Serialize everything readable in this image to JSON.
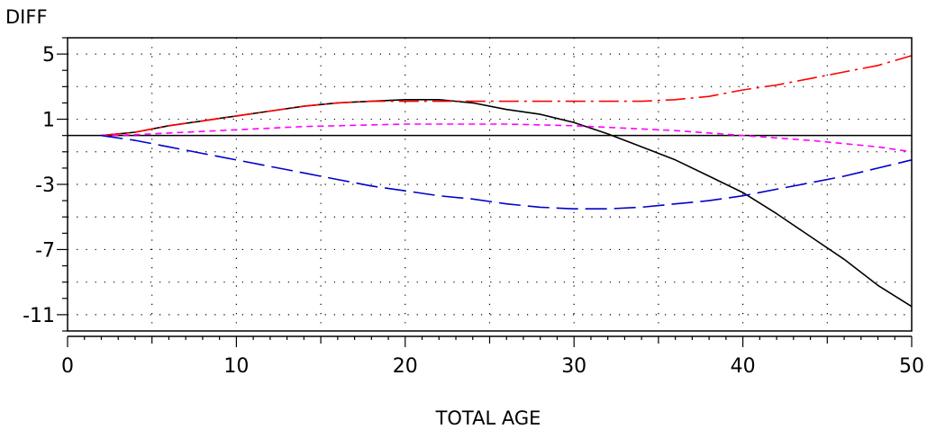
{
  "chart_data": {
    "type": "line",
    "title": "",
    "ylabel": "DIFF",
    "xlabel": "TOTAL AGE",
    "xlim": [
      0,
      50
    ],
    "ylim": [
      -12,
      6
    ],
    "x_ticks": [
      0,
      10,
      20,
      30,
      40,
      50
    ],
    "x_tick_labels": [
      "0",
      "10",
      "20",
      "30",
      "40",
      "50"
    ],
    "y_ticks": [
      5,
      1,
      -3,
      -7,
      -11
    ],
    "y_tick_labels": [
      "5",
      "1",
      "-3",
      "-7",
      "-11"
    ],
    "grid": true,
    "reference_line_y": 0,
    "series": [
      {
        "color": "#000000",
        "style": "solid",
        "x": [
          2,
          4,
          6,
          8,
          10,
          12,
          14,
          16,
          18,
          20,
          22,
          24,
          26,
          28,
          30,
          32,
          34,
          36,
          38,
          40,
          42,
          44,
          46,
          48,
          50
        ],
        "y": [
          0,
          0.2,
          0.6,
          0.9,
          1.2,
          1.5,
          1.8,
          2.0,
          2.1,
          2.2,
          2.2,
          2.0,
          1.6,
          1.3,
          0.8,
          0.1,
          -0.7,
          -1.5,
          -2.5,
          -3.5,
          -4.8,
          -6.2,
          -7.6,
          -9.2,
          -10.5
        ]
      },
      {
        "color": "#ff0000",
        "style": "dash-dot",
        "x": [
          2,
          4,
          6,
          8,
          10,
          12,
          14,
          16,
          18,
          20,
          22,
          24,
          26,
          28,
          30,
          32,
          34,
          36,
          38,
          40,
          42,
          44,
          46,
          48,
          50
        ],
        "y": [
          0,
          0.2,
          0.6,
          0.9,
          1.2,
          1.5,
          1.8,
          2.0,
          2.1,
          2.1,
          2.1,
          2.1,
          2.1,
          2.1,
          2.1,
          2.1,
          2.1,
          2.2,
          2.4,
          2.8,
          3.1,
          3.5,
          3.9,
          4.3,
          4.9
        ]
      },
      {
        "color": "#ff00ff",
        "style": "short-dash",
        "x": [
          2,
          4,
          6,
          8,
          10,
          12,
          14,
          16,
          18,
          20,
          22,
          24,
          26,
          28,
          30,
          32,
          34,
          36,
          38,
          40,
          42,
          44,
          46,
          48,
          50
        ],
        "y": [
          0,
          0.05,
          0.15,
          0.25,
          0.35,
          0.45,
          0.55,
          0.6,
          0.65,
          0.7,
          0.7,
          0.7,
          0.7,
          0.65,
          0.6,
          0.5,
          0.4,
          0.3,
          0.15,
          0,
          -0.15,
          -0.3,
          -0.5,
          -0.7,
          -1.0
        ]
      },
      {
        "color": "#0000cc",
        "style": "long-dash",
        "x": [
          2,
          4,
          6,
          8,
          10,
          12,
          14,
          16,
          18,
          20,
          22,
          24,
          26,
          28,
          30,
          32,
          34,
          36,
          38,
          40,
          42,
          44,
          46,
          48,
          50
        ],
        "y": [
          0,
          -0.3,
          -0.7,
          -1.1,
          -1.5,
          -1.9,
          -2.3,
          -2.7,
          -3.1,
          -3.4,
          -3.7,
          -3.9,
          -4.2,
          -4.4,
          -4.5,
          -4.5,
          -4.4,
          -4.2,
          -4.0,
          -3.7,
          -3.3,
          -2.9,
          -2.5,
          -2.0,
          -1.5
        ]
      }
    ]
  }
}
